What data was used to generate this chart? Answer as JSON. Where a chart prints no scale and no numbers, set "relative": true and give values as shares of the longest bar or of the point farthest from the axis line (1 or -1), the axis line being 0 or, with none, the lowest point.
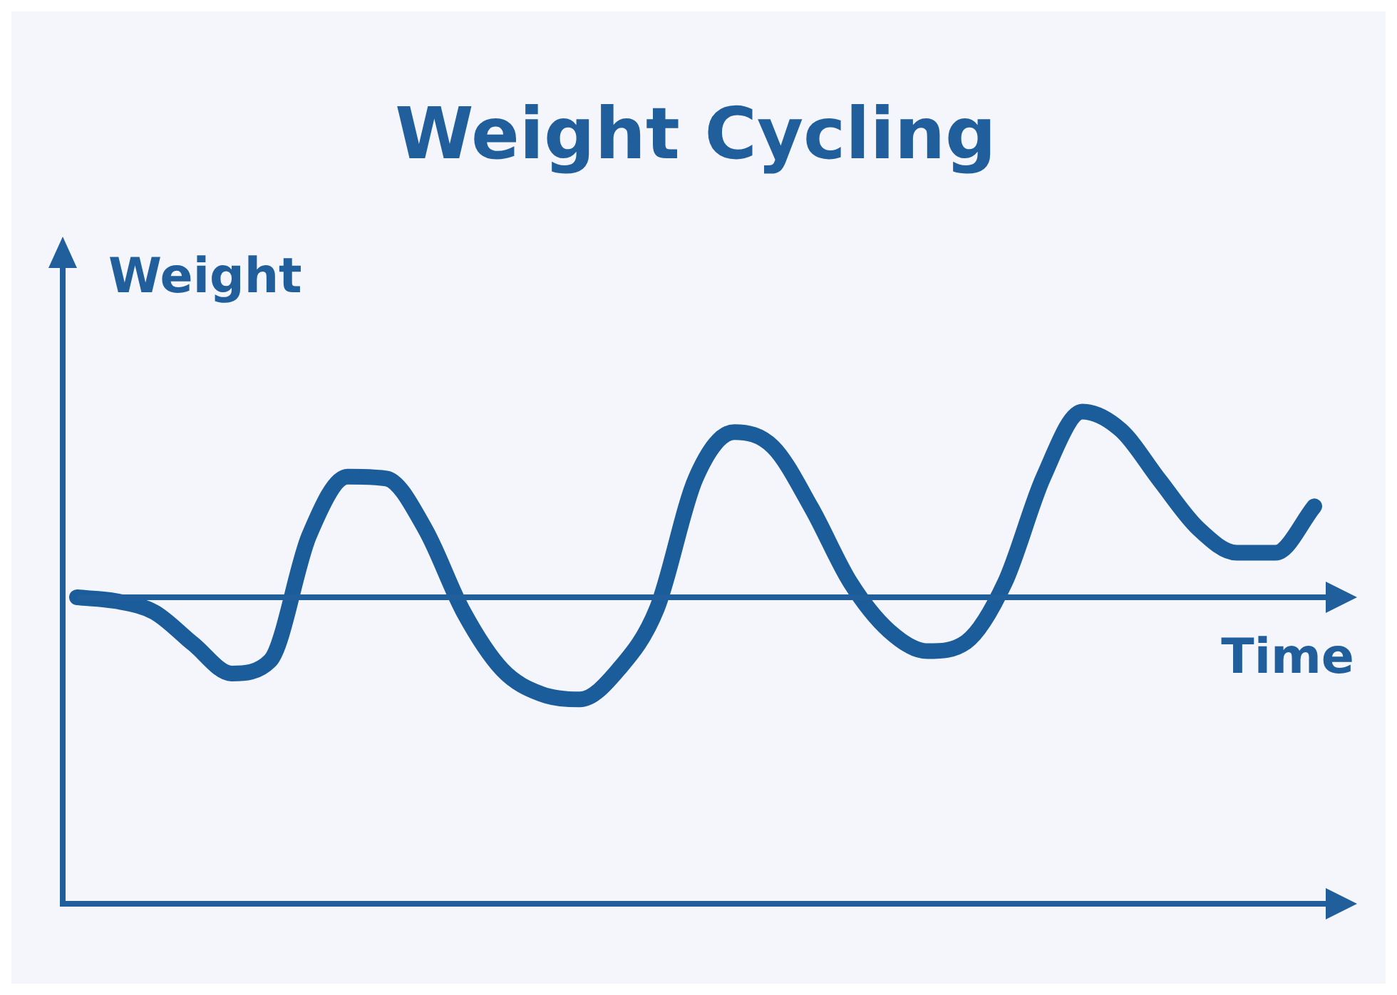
{
  "chart_data": {
    "type": "line",
    "title": "Weight Cycling",
    "xlabel": "Time",
    "ylabel": "Weight",
    "relative": true,
    "ref_lines": [
      {
        "axis": "y",
        "value": 0,
        "color": "#215f9c"
      }
    ],
    "marker": "none",
    "grid": false,
    "legend": false,
    "categories": [
      null,
      null,
      null,
      null,
      null,
      null,
      null,
      null,
      null,
      null,
      null,
      null,
      null,
      null,
      null,
      null,
      null,
      null,
      null,
      null,
      null,
      null,
      null,
      null,
      null,
      null,
      null,
      null,
      null,
      null,
      null,
      null,
      null
    ],
    "series": [
      {
        "color": "#1b5c9b",
        "values": [
          0,
          -0.02,
          -0.08,
          -0.25,
          -0.41,
          -0.34,
          0.33,
          0.65,
          0.64,
          0.37,
          -0.08,
          -0.39,
          -0.52,
          -0.55,
          -0.39,
          -0.06,
          0.64,
          0.89,
          0.81,
          0.48,
          0.08,
          -0.18,
          -0.29,
          -0.24,
          0.08,
          0.65,
          1,
          0.9,
          0.63,
          0.37,
          0.24,
          0.24,
          0.49
        ]
      }
    ]
  }
}
